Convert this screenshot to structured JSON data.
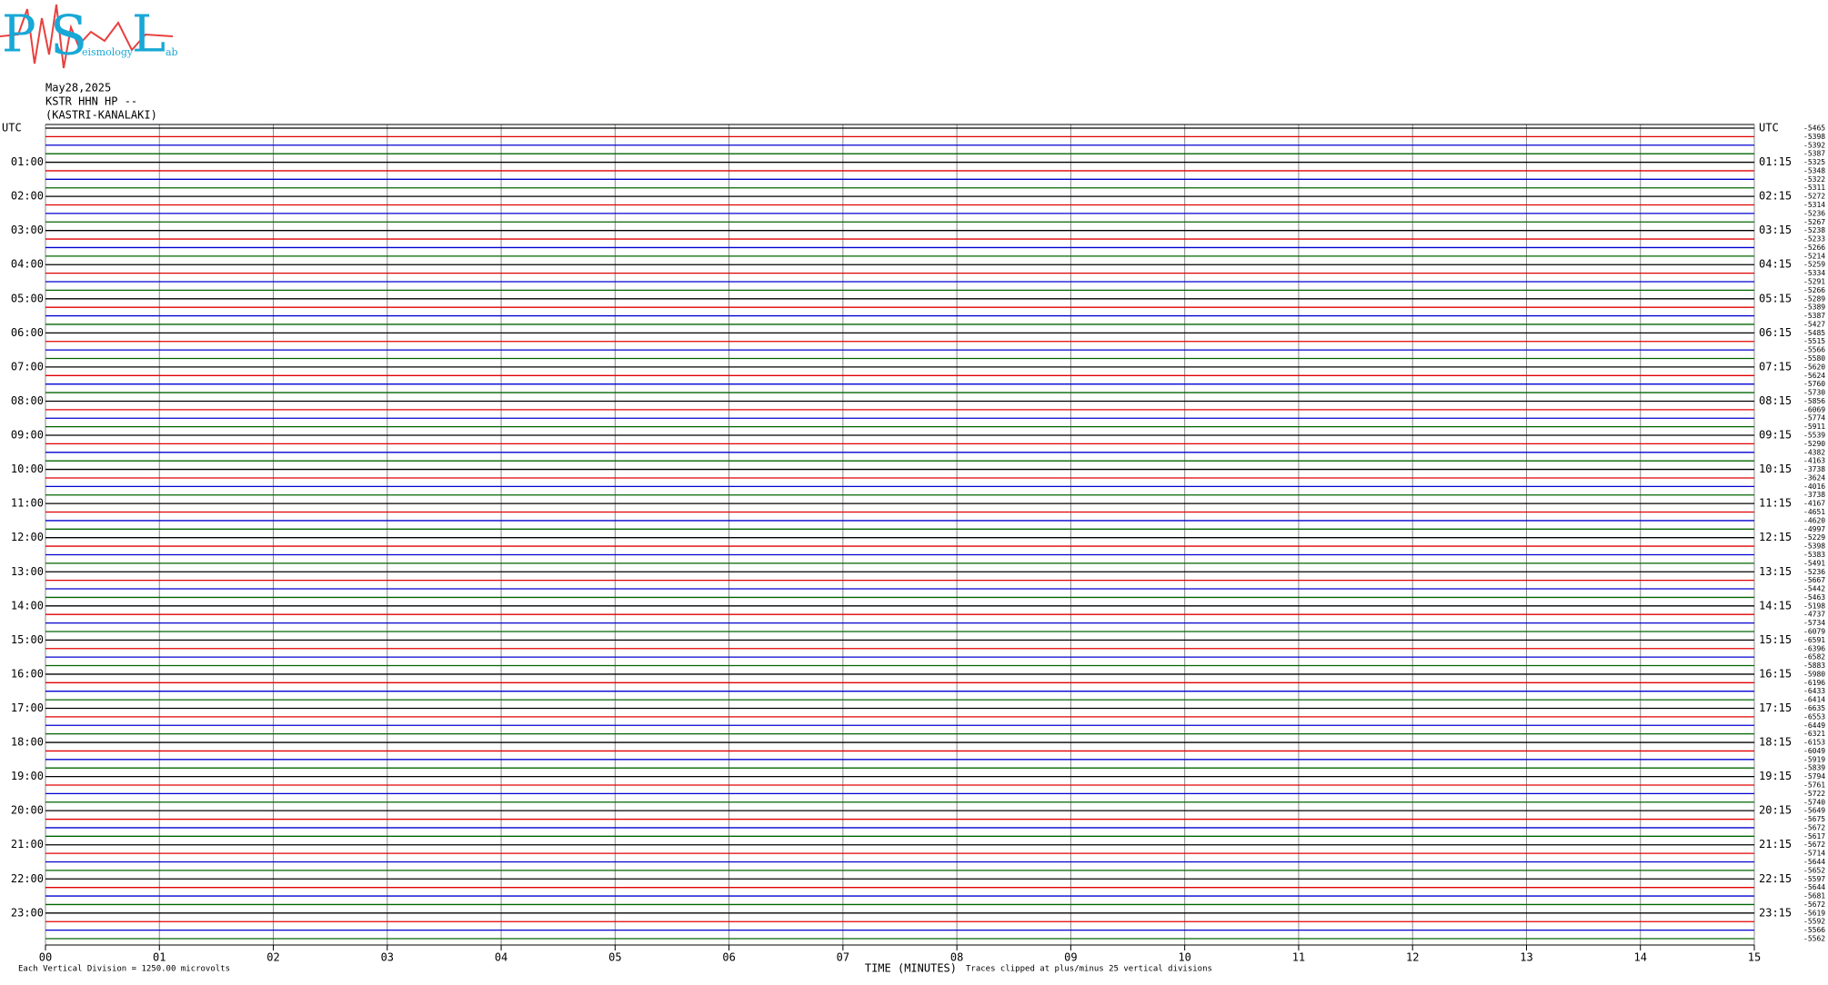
{
  "logo": {
    "letters": [
      "P",
      "S",
      "L"
    ],
    "small": [
      "eismology",
      "ab"
    ]
  },
  "header": {
    "date": "May28,2025",
    "station": "KSTR HHN HP --",
    "site": "(KASTRI-KANALAKI)"
  },
  "left_labels": [
    "UTC",
    "01:00",
    "02:00",
    "03:00",
    "04:00",
    "05:00",
    "06:00",
    "07:00",
    "08:00",
    "09:00",
    "10:00",
    "11:00",
    "12:00",
    "13:00",
    "14:00",
    "15:00",
    "16:00",
    "17:00",
    "18:00",
    "19:00",
    "20:00",
    "21:00",
    "22:00",
    "23:00"
  ],
  "right_labels": [
    "UTC",
    "01:15",
    "02:15",
    "03:15",
    "04:15",
    "05:15",
    "06:15",
    "07:15",
    "08:15",
    "09:15",
    "10:15",
    "11:15",
    "12:15",
    "13:15",
    "14:15",
    "15:15",
    "16:15",
    "17:15",
    "18:15",
    "19:15",
    "20:15",
    "21:15",
    "22:15",
    "23:15"
  ],
  "trace_offsets": [
    -5465,
    -5398,
    -5392,
    -5387,
    -5325,
    -5348,
    -5322,
    -5311,
    -5272,
    -5314,
    -5236,
    -5267,
    -5238,
    -5233,
    -5266,
    -5214,
    -5259,
    -5334,
    -5291,
    -5266,
    -5289,
    -5389,
    -5387,
    -5427,
    -5485,
    -5515,
    -5566,
    -5580,
    -5620,
    -5624,
    -5760,
    -5730,
    -5856,
    -6069,
    -5774,
    -5911,
    -5539,
    -5290,
    -4382,
    -4163,
    -3738,
    -3624,
    -4016,
    -3738,
    -4167,
    -4651,
    -4620,
    -4997,
    -5229,
    -5398,
    -5383,
    -5491,
    -5236,
    -5667,
    -5442,
    -5463,
    -5198,
    -4737,
    -5734,
    -6079,
    -6591,
    -6396,
    -6582,
    -5883,
    -5980,
    -6196,
    -6433,
    -6414,
    -6635,
    -6553,
    -6449,
    -6321,
    -6153,
    -6049,
    -5919,
    -5839,
    -5794,
    -5761,
    -5722,
    -5740,
    -5649,
    -5675,
    -5672,
    -5617,
    -5672,
    -5714,
    -5644,
    -5652,
    -5597,
    -5644,
    -5681,
    -5672,
    -5619,
    -5592,
    -5566,
    -5562
  ],
  "trace_colors": [
    "#000000",
    "#e00000",
    "#0000d0",
    "#006400"
  ],
  "minutes": [
    "00",
    "01",
    "02",
    "03",
    "04",
    "05",
    "06",
    "07",
    "08",
    "09",
    "10",
    "11",
    "12",
    "13",
    "14",
    "15"
  ],
  "footer": {
    "scale": "Each Vertical Division = 1250.00 microvolts",
    "axis_title": "TIME (MINUTES)",
    "clip": "Traces clipped at plus/minus 25 vertical divisions"
  }
}
